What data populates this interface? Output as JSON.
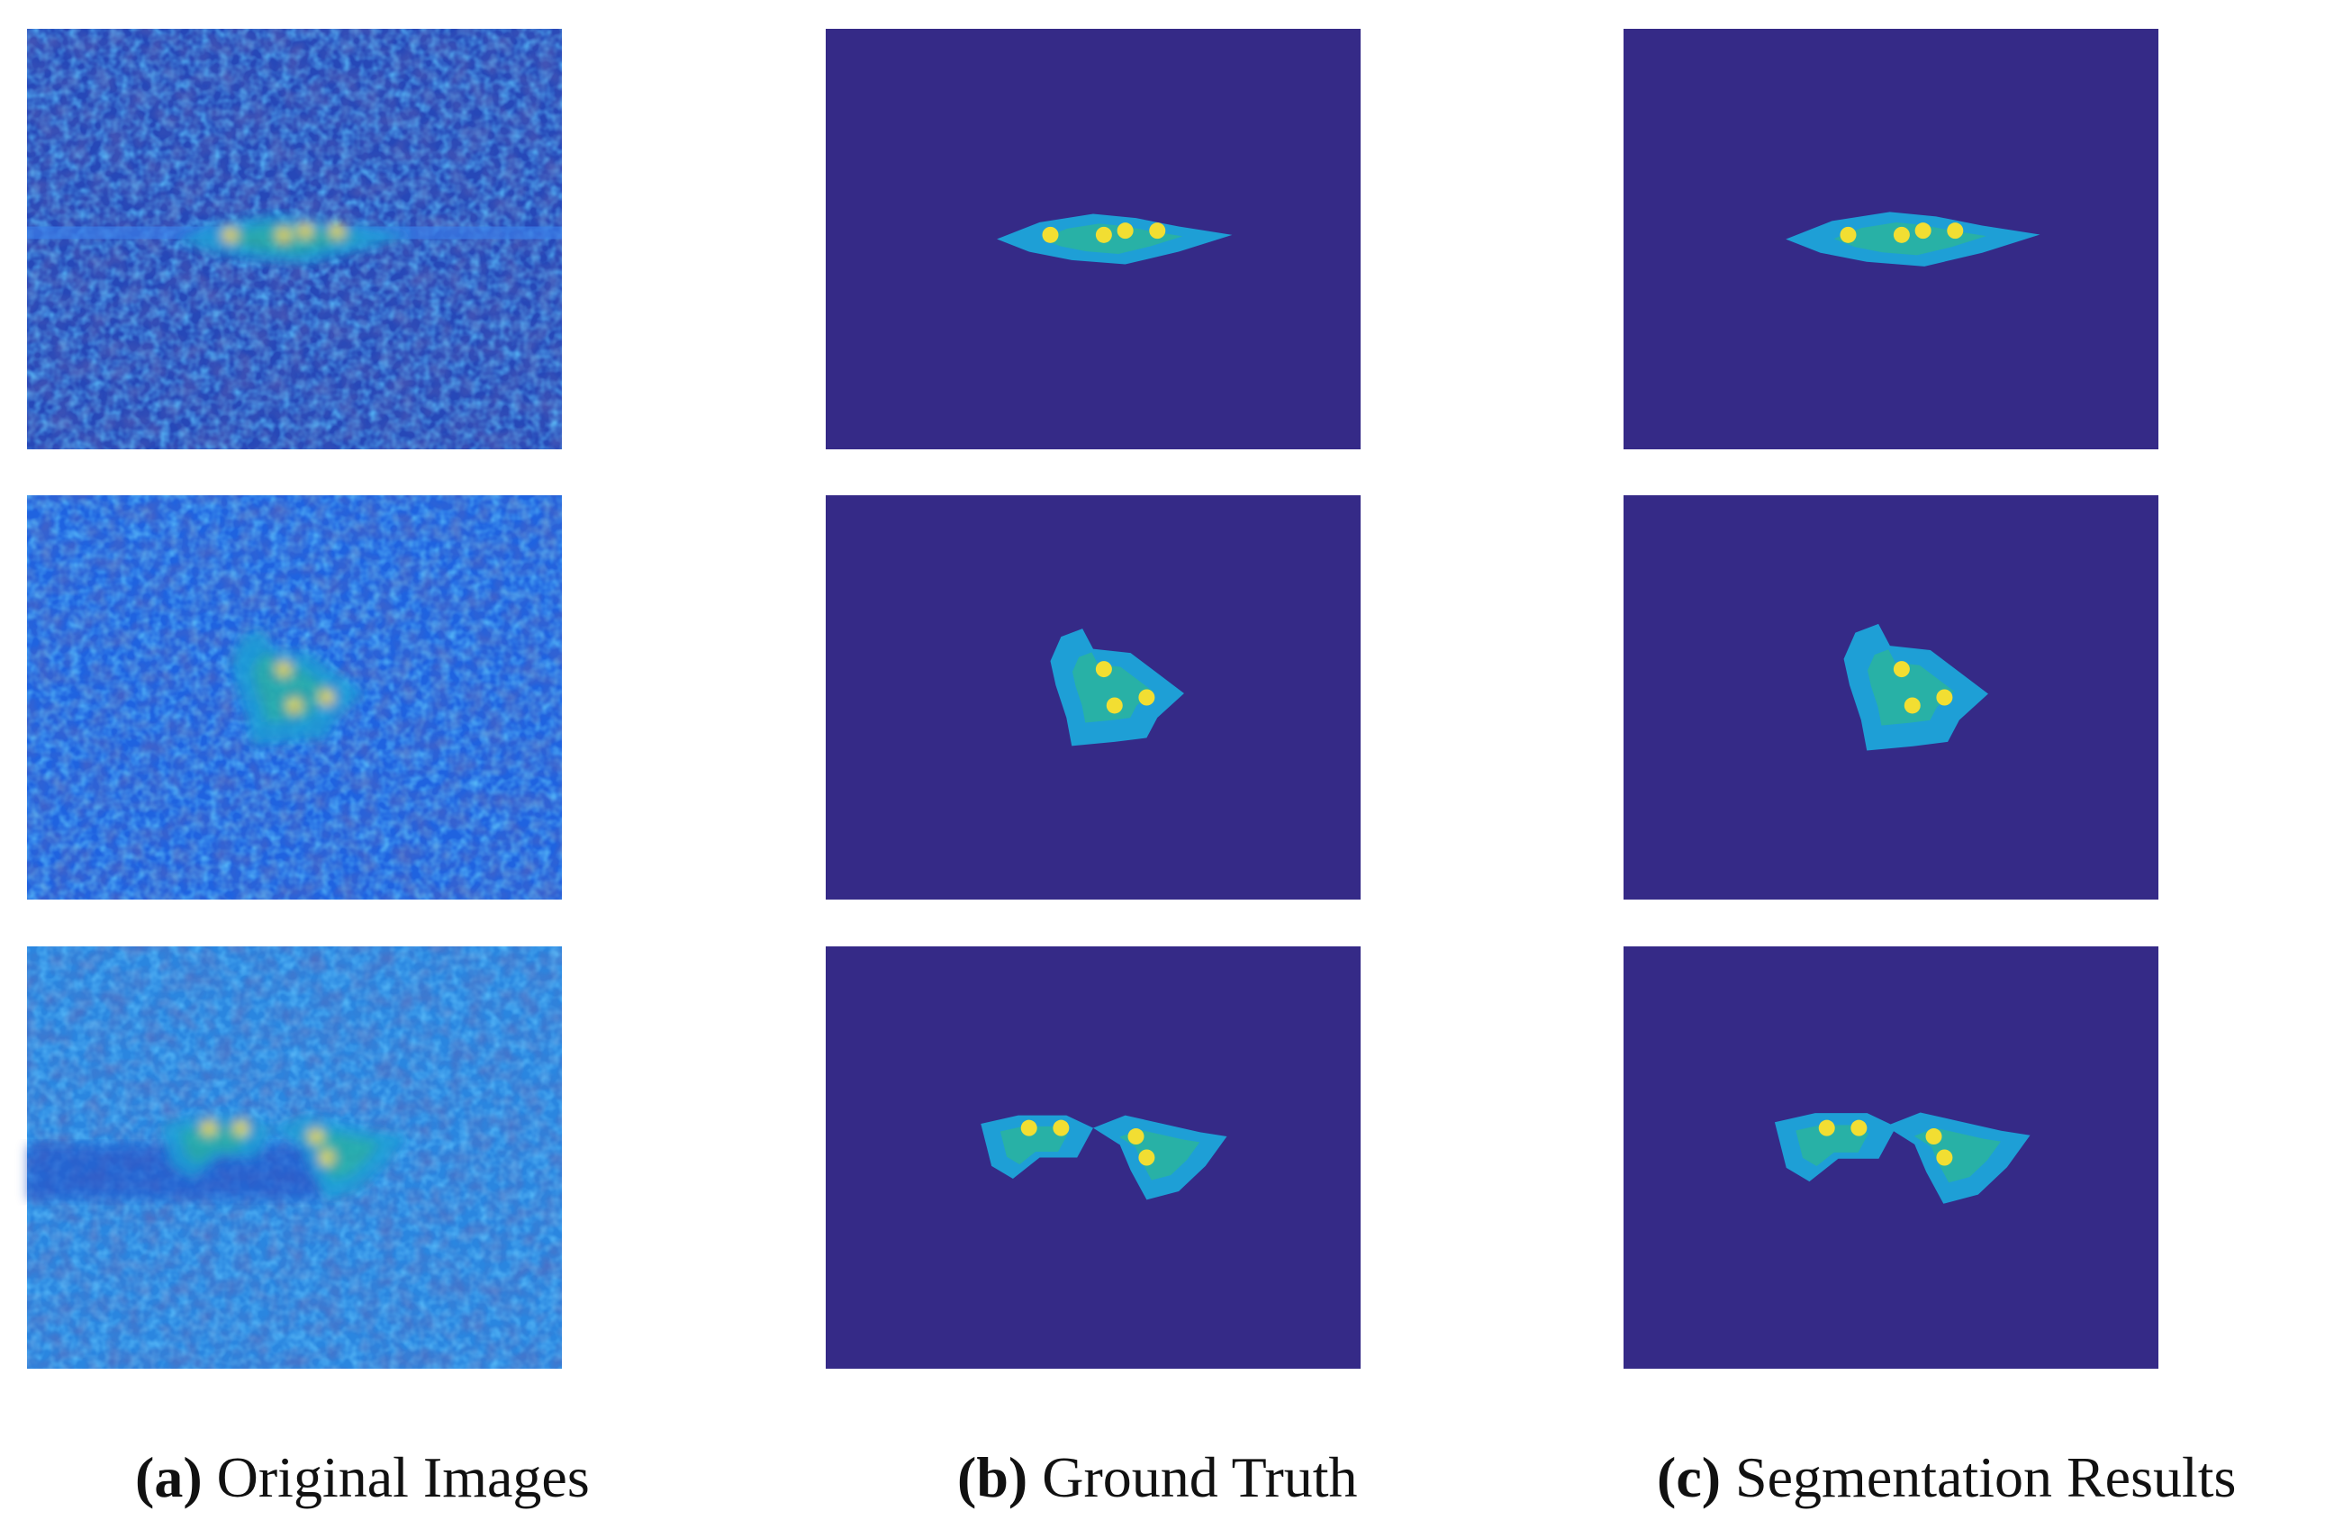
{
  "figure": {
    "columns": [
      {
        "label": "(a)",
        "text": "Original Images"
      },
      {
        "label": "(b)",
        "text": "Ground Truth"
      },
      {
        "label": "(c)",
        "text": "Segmentation Results"
      }
    ]
  }
}
